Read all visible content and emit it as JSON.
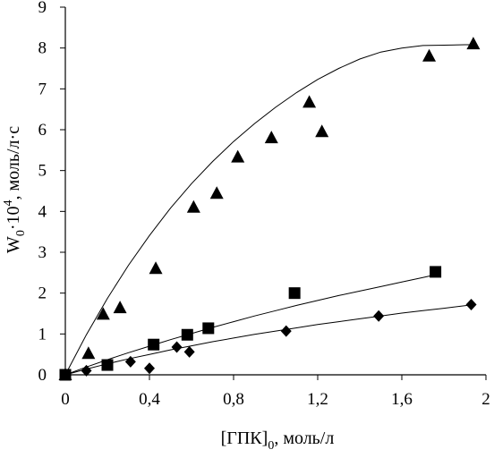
{
  "chart_data": {
    "type": "scatter",
    "xlabel": {
      "main": "[ГПК]",
      "sub": "0",
      "rest": ", моль/л"
    },
    "ylabel": {
      "main": "W",
      "sub": "0",
      "mid": "·10",
      "sup": "4",
      "rest": ", моль/л·с"
    },
    "xlim": [
      0,
      2
    ],
    "ylim": [
      0,
      9
    ],
    "x_ticks": [
      {
        "value": 0,
        "label": "0"
      },
      {
        "value": 0.4,
        "label": "0,4"
      },
      {
        "value": 0.8,
        "label": "0,8"
      },
      {
        "value": 1.2,
        "label": "1,2"
      },
      {
        "value": 1.6,
        "label": "1,6"
      },
      {
        "value": 2,
        "label": "2"
      }
    ],
    "y_ticks": [
      {
        "value": 0,
        "label": "0"
      },
      {
        "value": 1,
        "label": "1"
      },
      {
        "value": 2,
        "label": "2"
      },
      {
        "value": 3,
        "label": "3"
      },
      {
        "value": 4,
        "label": "4"
      },
      {
        "value": 5,
        "label": "5"
      },
      {
        "value": 6,
        "label": "6"
      },
      {
        "value": 7,
        "label": "7"
      },
      {
        "value": 8,
        "label": "8"
      },
      {
        "value": 9,
        "label": "9"
      }
    ],
    "grid": false,
    "legend": "none",
    "series": [
      {
        "marker": "triangle",
        "color": "#000000",
        "points": [
          [
            0,
            0
          ],
          [
            0.11,
            0.52
          ],
          [
            0.18,
            1.48
          ],
          [
            0.26,
            1.64
          ],
          [
            0.43,
            2.6
          ],
          [
            0.61,
            4.1
          ],
          [
            0.72,
            4.44
          ],
          [
            0.82,
            5.33
          ],
          [
            0.98,
            5.8
          ],
          [
            1.16,
            6.67
          ],
          [
            1.22,
            5.95
          ],
          [
            1.73,
            7.8
          ],
          [
            1.94,
            8.1
          ]
        ],
        "trend": [
          [
            0,
            0
          ],
          [
            0.1,
            0.98
          ],
          [
            0.2,
            1.87
          ],
          [
            0.3,
            2.68
          ],
          [
            0.4,
            3.41
          ],
          [
            0.5,
            4.08
          ],
          [
            0.6,
            4.68
          ],
          [
            0.7,
            5.22
          ],
          [
            0.8,
            5.71
          ],
          [
            0.9,
            6.15
          ],
          [
            1.0,
            6.55
          ],
          [
            1.1,
            6.91
          ],
          [
            1.2,
            7.23
          ],
          [
            1.3,
            7.5
          ],
          [
            1.4,
            7.73
          ],
          [
            1.5,
            7.9
          ],
          [
            1.6,
            8.0
          ],
          [
            1.7,
            8.06
          ],
          [
            1.8,
            8.07
          ],
          [
            1.9,
            8.08
          ],
          [
            1.94,
            8.08
          ]
        ]
      },
      {
        "marker": "square",
        "color": "#000000",
        "points": [
          [
            0,
            0
          ],
          [
            0.2,
            0.24
          ],
          [
            0.42,
            0.74
          ],
          [
            0.58,
            0.98
          ],
          [
            0.68,
            1.14
          ],
          [
            1.09,
            2.0
          ],
          [
            1.76,
            2.52
          ]
        ],
        "trend": [
          [
            0,
            0
          ],
          [
            0.1,
            0.19
          ],
          [
            0.2,
            0.37
          ],
          [
            0.3,
            0.54
          ],
          [
            0.4,
            0.7
          ],
          [
            0.5,
            0.86
          ],
          [
            0.6,
            1.01
          ],
          [
            0.7,
            1.16
          ],
          [
            0.8,
            1.3
          ],
          [
            0.9,
            1.44
          ],
          [
            1.0,
            1.57
          ],
          [
            1.1,
            1.7
          ],
          [
            1.2,
            1.82
          ],
          [
            1.3,
            1.94
          ],
          [
            1.4,
            2.05
          ],
          [
            1.5,
            2.16
          ],
          [
            1.6,
            2.27
          ],
          [
            1.7,
            2.38
          ],
          [
            1.76,
            2.45
          ]
        ]
      },
      {
        "marker": "diamond",
        "color": "#000000",
        "points": [
          [
            0,
            0
          ],
          [
            0.1,
            0.1
          ],
          [
            0.31,
            0.32
          ],
          [
            0.4,
            0.16
          ],
          [
            0.53,
            0.68
          ],
          [
            0.59,
            0.56
          ],
          [
            1.05,
            1.07
          ],
          [
            1.49,
            1.44
          ],
          [
            1.93,
            1.72
          ]
        ],
        "trend": [
          [
            0,
            0
          ],
          [
            0.1,
            0.14
          ],
          [
            0.2,
            0.27
          ],
          [
            0.3,
            0.39
          ],
          [
            0.4,
            0.5
          ],
          [
            0.5,
            0.61
          ],
          [
            0.6,
            0.71
          ],
          [
            0.7,
            0.81
          ],
          [
            0.8,
            0.9
          ],
          [
            0.9,
            0.99
          ],
          [
            1.0,
            1.07
          ],
          [
            1.1,
            1.15
          ],
          [
            1.2,
            1.23
          ],
          [
            1.3,
            1.3
          ],
          [
            1.4,
            1.37
          ],
          [
            1.5,
            1.44
          ],
          [
            1.6,
            1.51
          ],
          [
            1.7,
            1.57
          ],
          [
            1.8,
            1.63
          ],
          [
            1.93,
            1.71
          ]
        ]
      }
    ]
  }
}
